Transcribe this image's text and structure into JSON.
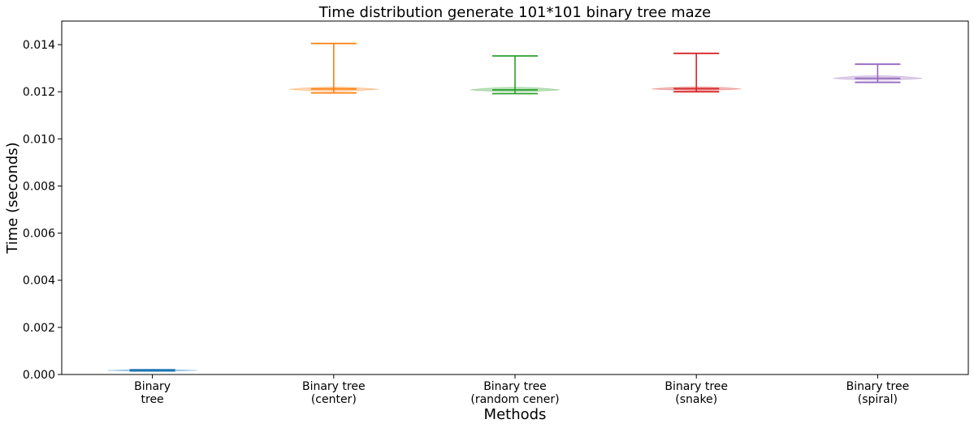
{
  "chart_data": {
    "type": "violin",
    "title": "Time distribution generate 101*101 binary tree maze",
    "xlabel": "Methods",
    "ylabel": "Time (seconds)",
    "ylim": [
      0,
      0.015
    ],
    "yticks": [
      "0.000",
      "0.002",
      "0.004",
      "0.006",
      "0.008",
      "0.010",
      "0.012",
      "0.014"
    ],
    "grid": false,
    "categories": [
      [
        "Binary",
        "tree"
      ],
      [
        "Binary tree",
        "(center)"
      ],
      [
        "Binary tree",
        "(random cener)"
      ],
      [
        "Binary tree",
        "(snake)"
      ],
      [
        "Binary tree",
        "(spiral)"
      ]
    ],
    "series": [
      {
        "min": 0.00015,
        "median": 0.00017,
        "max": 0.0002,
        "mode": 0.00017,
        "color": "#1f77b4"
      },
      {
        "min": 0.01195,
        "median": 0.01212,
        "max": 0.01405,
        "mode": 0.0121,
        "color": "#ff7f0e"
      },
      {
        "min": 0.01192,
        "median": 0.01208,
        "max": 0.01352,
        "mode": 0.01208,
        "color": "#2ca02c"
      },
      {
        "min": 0.012,
        "median": 0.01213,
        "max": 0.01363,
        "mode": 0.01212,
        "color": "#d62728"
      },
      {
        "min": 0.0124,
        "median": 0.01257,
        "max": 0.01317,
        "mode": 0.01257,
        "color": "#9467bd"
      }
    ]
  }
}
